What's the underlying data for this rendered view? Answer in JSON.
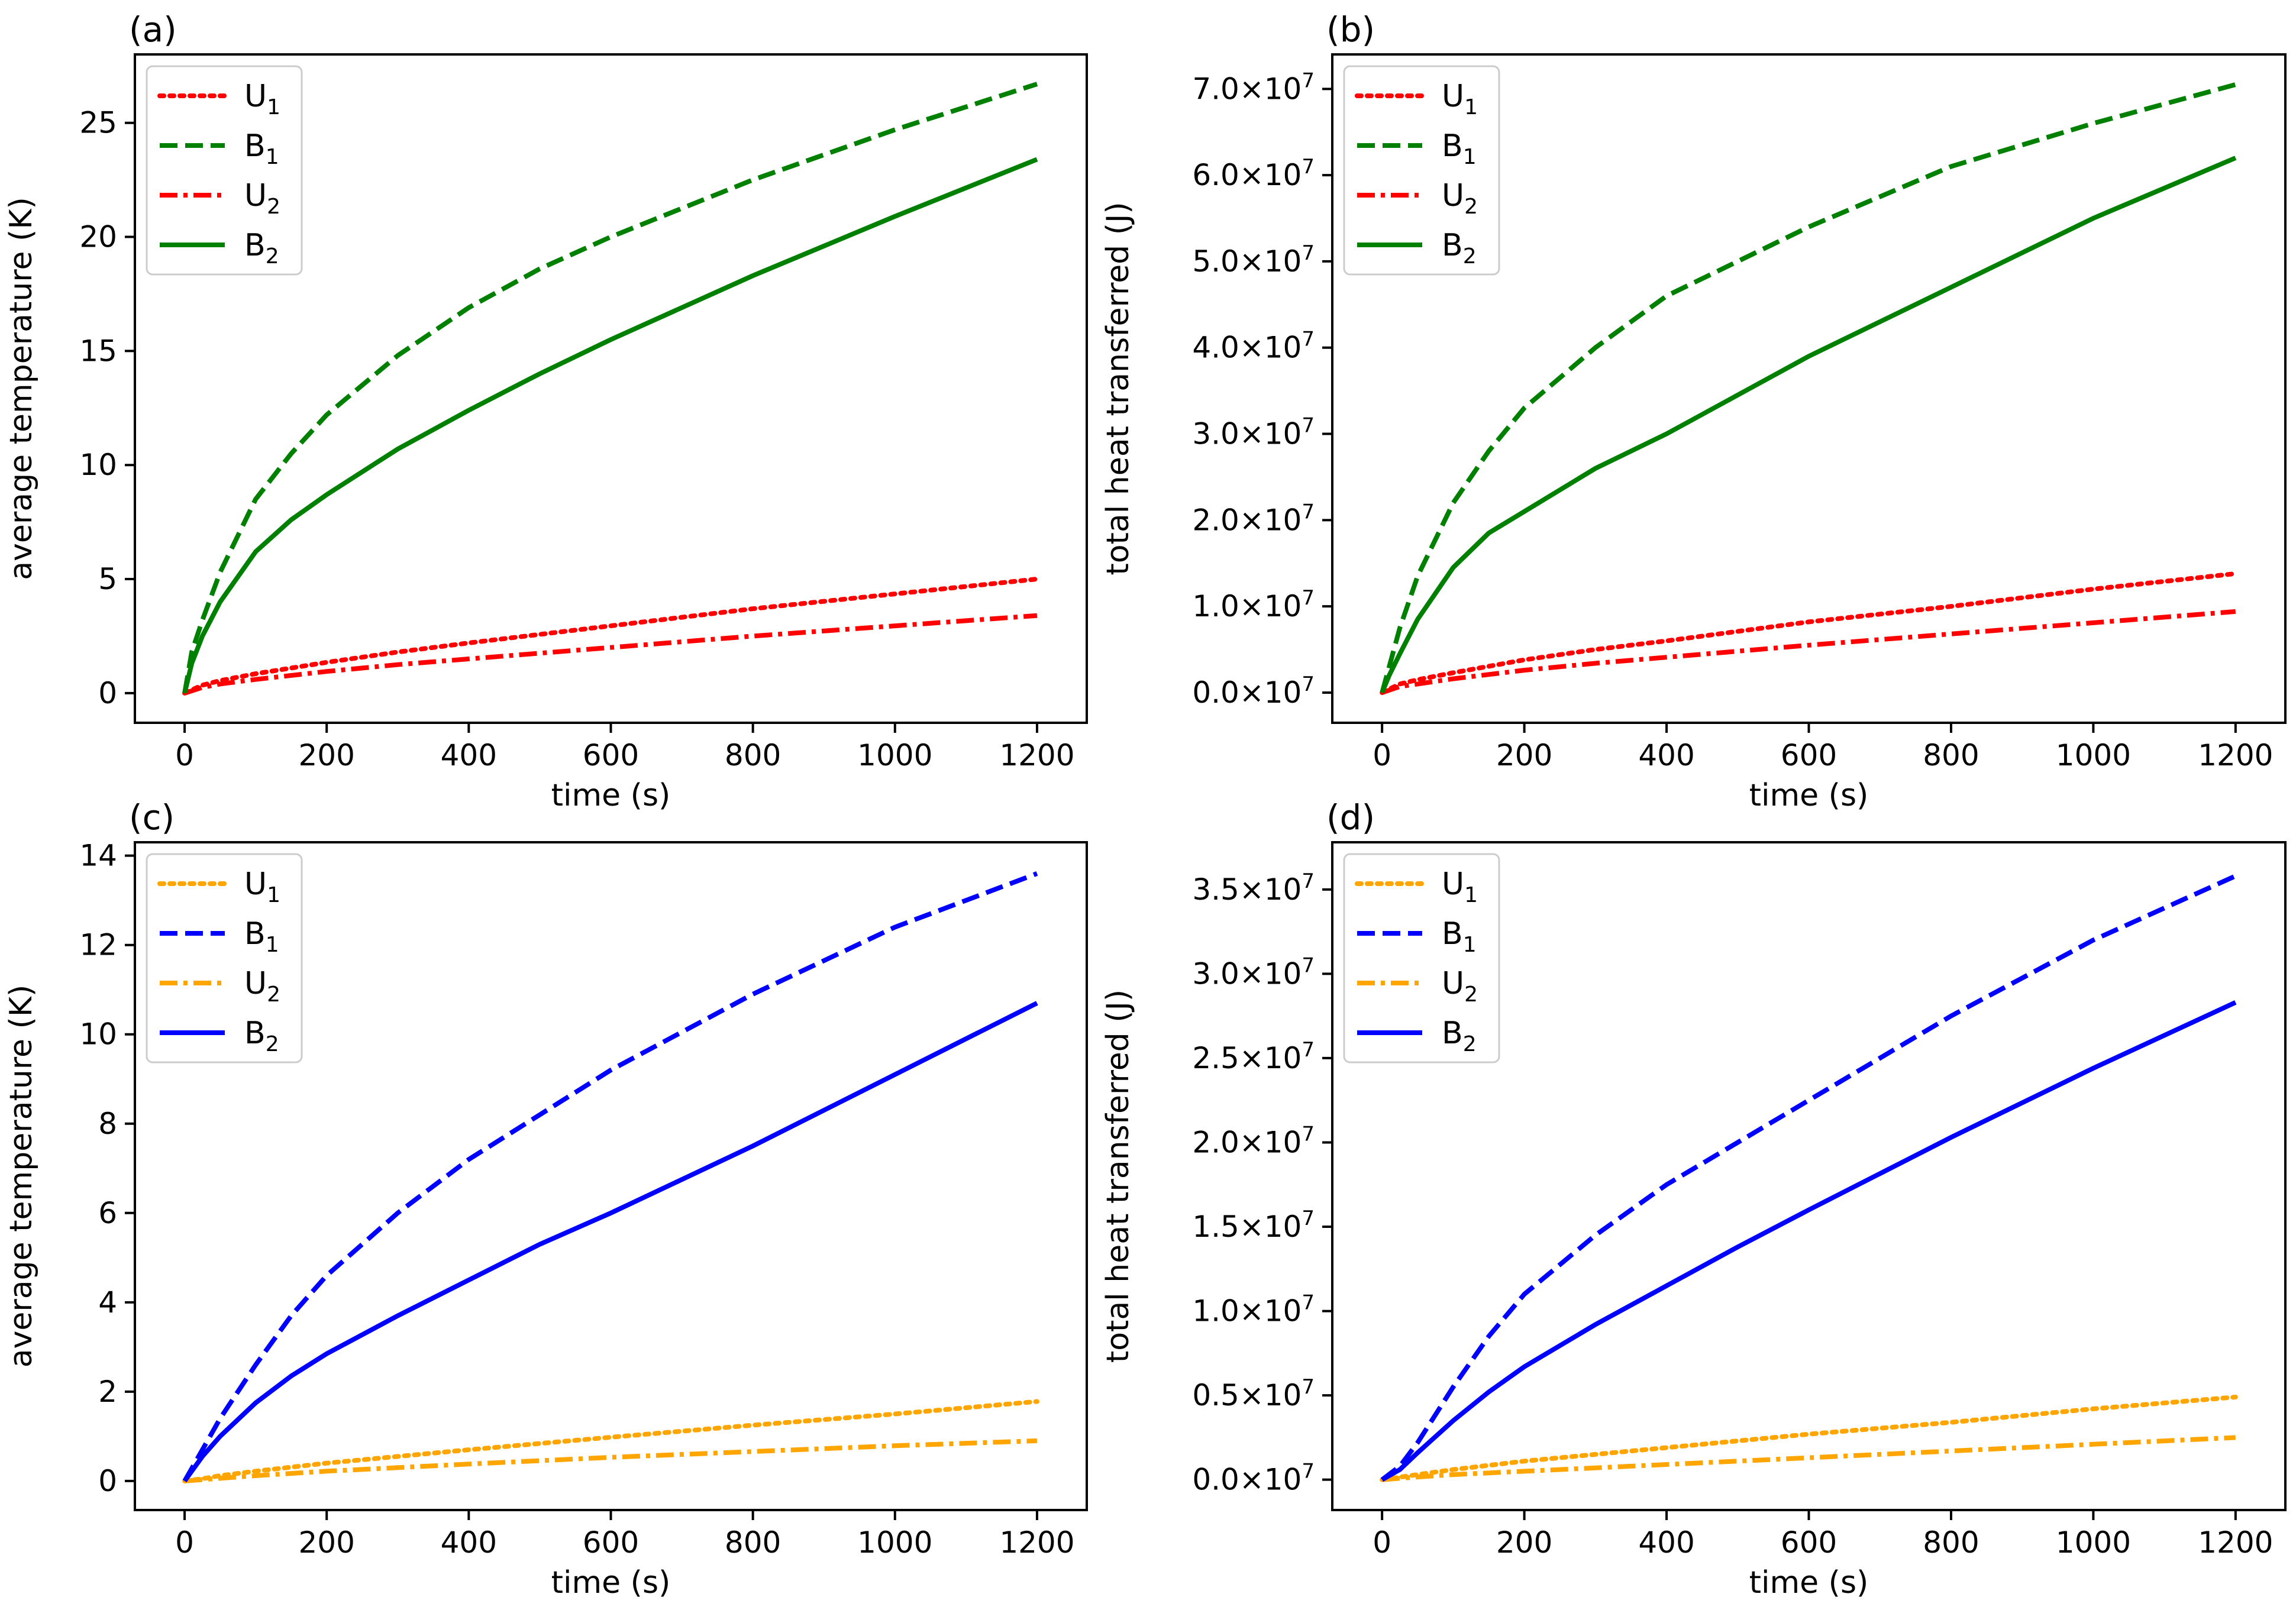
{
  "chart_data": [
    {
      "panel": "(a)",
      "type": "line",
      "xlabel": "time (s)",
      "ylabel": "average temperature (K)",
      "xlim": [
        -70,
        1270
      ],
      "ylim": [
        -1.3,
        28.0
      ],
      "xticks": [
        0,
        200,
        400,
        600,
        800,
        1000,
        1200
      ],
      "yticks": [
        0,
        5,
        10,
        15,
        20,
        25
      ],
      "tick_format": "plain",
      "legend_location": "upper-left",
      "series": [
        {
          "name": "U",
          "sub": "1",
          "color": "#ff0000",
          "style": "dotted",
          "x": [
            0,
            25,
            50,
            100,
            200,
            300,
            400,
            600,
            800,
            1000,
            1200
          ],
          "y": [
            0,
            0.35,
            0.55,
            0.85,
            1.35,
            1.8,
            2.2,
            2.95,
            3.7,
            4.35,
            5.0
          ]
        },
        {
          "name": "B",
          "sub": "1",
          "color": "#008000",
          "style": "dashed",
          "x": [
            0,
            10,
            25,
            50,
            100,
            150,
            200,
            300,
            400,
            500,
            600,
            800,
            1000,
            1200
          ],
          "y": [
            0,
            1.8,
            3.2,
            5.3,
            8.5,
            10.5,
            12.2,
            14.8,
            16.9,
            18.6,
            20.0,
            22.5,
            24.7,
            26.7
          ]
        },
        {
          "name": "U",
          "sub": "2",
          "color": "#ff0000",
          "style": "dashdot",
          "x": [
            0,
            25,
            50,
            100,
            200,
            300,
            400,
            600,
            800,
            1000,
            1200
          ],
          "y": [
            0,
            0.25,
            0.4,
            0.6,
            0.95,
            1.25,
            1.5,
            2.0,
            2.5,
            2.95,
            3.4
          ]
        },
        {
          "name": "B",
          "sub": "2",
          "color": "#008000",
          "style": "solid",
          "x": [
            0,
            10,
            25,
            50,
            100,
            150,
            200,
            300,
            400,
            500,
            600,
            800,
            1000,
            1200
          ],
          "y": [
            0,
            1.3,
            2.5,
            4.0,
            6.2,
            7.6,
            8.7,
            10.7,
            12.4,
            14.0,
            15.5,
            18.3,
            20.9,
            23.4
          ]
        }
      ]
    },
    {
      "panel": "(b)",
      "type": "line",
      "xlabel": "time (s)",
      "ylabel": "total heat transferred (J)",
      "xlim": [
        -70,
        1270
      ],
      "ylim": [
        -0.35,
        7.4
      ],
      "xticks": [
        0,
        200,
        400,
        600,
        800,
        1000,
        1200
      ],
      "yticks": [
        0.0,
        1.0,
        2.0,
        3.0,
        4.0,
        5.0,
        6.0,
        7.0
      ],
      "tick_format": "sci",
      "tick_exponent": "7",
      "legend_location": "upper-left",
      "series": [
        {
          "name": "U",
          "sub": "1",
          "color": "#ff0000",
          "style": "dotted",
          "x": [
            0,
            25,
            50,
            100,
            200,
            300,
            400,
            600,
            800,
            1000,
            1200
          ],
          "y": [
            0,
            0.1,
            0.15,
            0.23,
            0.38,
            0.5,
            0.6,
            0.82,
            1.0,
            1.2,
            1.38
          ]
        },
        {
          "name": "B",
          "sub": "1",
          "color": "#008000",
          "style": "dashed",
          "x": [
            0,
            10,
            25,
            50,
            100,
            150,
            200,
            300,
            400,
            500,
            600,
            800,
            1000,
            1200
          ],
          "y": [
            0,
            0.3,
            0.75,
            1.35,
            2.2,
            2.8,
            3.3,
            4.0,
            4.6,
            5.0,
            5.4,
            6.1,
            6.6,
            7.05
          ]
        },
        {
          "name": "U",
          "sub": "2",
          "color": "#ff0000",
          "style": "dashdot",
          "x": [
            0,
            25,
            50,
            100,
            200,
            300,
            400,
            600,
            800,
            1000,
            1200
          ],
          "y": [
            0,
            0.07,
            0.1,
            0.16,
            0.26,
            0.34,
            0.41,
            0.55,
            0.68,
            0.81,
            0.94
          ]
        },
        {
          "name": "B",
          "sub": "2",
          "color": "#008000",
          "style": "solid",
          "x": [
            0,
            10,
            25,
            50,
            100,
            150,
            200,
            300,
            400,
            500,
            600,
            800,
            1000,
            1200
          ],
          "y": [
            0,
            0.2,
            0.45,
            0.85,
            1.45,
            1.85,
            2.1,
            2.6,
            3.0,
            3.45,
            3.9,
            4.7,
            5.5,
            6.2
          ]
        }
      ]
    },
    {
      "panel": "(c)",
      "type": "line",
      "xlabel": "time (s)",
      "ylabel": "average temperature (K)",
      "xlim": [
        -70,
        1270
      ],
      "ylim": [
        -0.65,
        14.3
      ],
      "xticks": [
        0,
        200,
        400,
        600,
        800,
        1000,
        1200
      ],
      "yticks": [
        0,
        2,
        4,
        6,
        8,
        10,
        12,
        14
      ],
      "tick_format": "plain",
      "legend_location": "upper-left",
      "series": [
        {
          "name": "U",
          "sub": "1",
          "color": "#ffa500",
          "style": "dotted",
          "x": [
            0,
            25,
            50,
            100,
            200,
            300,
            400,
            600,
            800,
            1000,
            1200
          ],
          "y": [
            0,
            0.05,
            0.12,
            0.22,
            0.4,
            0.55,
            0.7,
            0.98,
            1.25,
            1.5,
            1.78
          ]
        },
        {
          "name": "B",
          "sub": "1",
          "color": "#0000ff",
          "style": "dashed",
          "x": [
            0,
            25,
            50,
            100,
            150,
            200,
            300,
            400,
            500,
            600,
            800,
            1000,
            1200
          ],
          "y": [
            0,
            0.7,
            1.4,
            2.6,
            3.7,
            4.6,
            6.0,
            7.2,
            8.2,
            9.2,
            10.9,
            12.4,
            13.6
          ]
        },
        {
          "name": "U",
          "sub": "2",
          "color": "#ffa500",
          "style": "dashdot",
          "x": [
            0,
            25,
            50,
            100,
            200,
            300,
            400,
            600,
            800,
            1000,
            1200
          ],
          "y": [
            0,
            0.03,
            0.06,
            0.12,
            0.22,
            0.3,
            0.38,
            0.53,
            0.66,
            0.79,
            0.9
          ]
        },
        {
          "name": "B",
          "sub": "2",
          "color": "#0000ff",
          "style": "solid",
          "x": [
            0,
            25,
            50,
            100,
            150,
            200,
            300,
            400,
            500,
            600,
            800,
            1000,
            1200
          ],
          "y": [
            0,
            0.55,
            1.0,
            1.75,
            2.35,
            2.85,
            3.7,
            4.5,
            5.3,
            6.0,
            7.5,
            9.1,
            10.7
          ]
        }
      ]
    },
    {
      "panel": "(d)",
      "type": "line",
      "xlabel": "time (s)",
      "ylabel": "total heat transferred (J)",
      "xlim": [
        -70,
        1270
      ],
      "ylim": [
        -0.18,
        3.78
      ],
      "xticks": [
        0,
        200,
        400,
        600,
        800,
        1000,
        1200
      ],
      "yticks": [
        0.0,
        0.5,
        1.0,
        1.5,
        2.0,
        2.5,
        3.0,
        3.5
      ],
      "tick_format": "sci",
      "tick_exponent": "7",
      "legend_location": "upper-left",
      "series": [
        {
          "name": "U",
          "sub": "1",
          "color": "#ffa500",
          "style": "dotted",
          "x": [
            0,
            25,
            50,
            100,
            200,
            300,
            400,
            600,
            800,
            1000,
            1200
          ],
          "y": [
            0,
            0.015,
            0.03,
            0.06,
            0.11,
            0.15,
            0.19,
            0.27,
            0.34,
            0.42,
            0.49
          ]
        },
        {
          "name": "B",
          "sub": "1",
          "color": "#0000ff",
          "style": "dashed",
          "x": [
            0,
            25,
            50,
            100,
            150,
            200,
            300,
            400,
            500,
            600,
            800,
            1000,
            1200
          ],
          "y": [
            0,
            0.08,
            0.22,
            0.55,
            0.85,
            1.1,
            1.45,
            1.75,
            2.0,
            2.25,
            2.75,
            3.2,
            3.58
          ]
        },
        {
          "name": "U",
          "sub": "2",
          "color": "#ffa500",
          "style": "dashdot",
          "x": [
            0,
            25,
            50,
            100,
            200,
            300,
            400,
            600,
            800,
            1000,
            1200
          ],
          "y": [
            0,
            0.008,
            0.016,
            0.03,
            0.05,
            0.07,
            0.09,
            0.13,
            0.17,
            0.21,
            0.25
          ]
        },
        {
          "name": "B",
          "sub": "2",
          "color": "#0000ff",
          "style": "solid",
          "x": [
            0,
            25,
            50,
            100,
            150,
            200,
            300,
            400,
            500,
            600,
            800,
            1000,
            1200
          ],
          "y": [
            0,
            0.06,
            0.16,
            0.35,
            0.52,
            0.67,
            0.92,
            1.15,
            1.38,
            1.6,
            2.03,
            2.44,
            2.83
          ]
        }
      ]
    }
  ]
}
